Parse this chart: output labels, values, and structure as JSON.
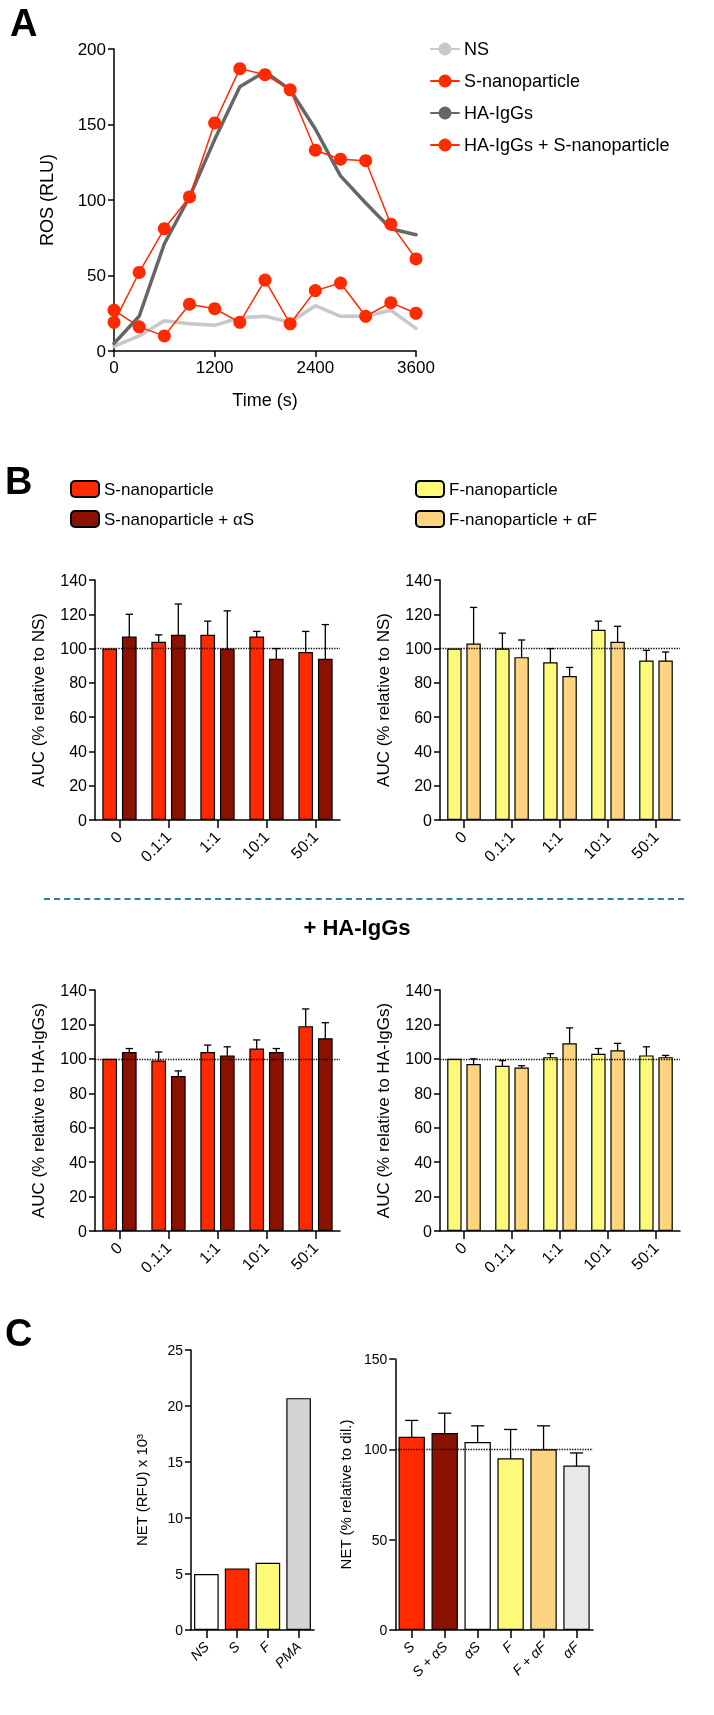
{
  "chart_data": [
    {
      "type": "line",
      "xlabel": "Time (s)",
      "ylabel": "ROS (RLU)",
      "annotations": [
        "A"
      ],
      "x": [
        0,
        300,
        600,
        900,
        1200,
        1500,
        1800,
        2100,
        2400,
        2700,
        3000,
        3300,
        3600
      ],
      "xlim": [
        0,
        3600
      ],
      "xticks": [
        0,
        1200,
        2400,
        3600
      ],
      "ylim": [
        0,
        200
      ],
      "yticks": [
        0,
        50,
        100,
        150,
        200
      ],
      "legend": "right",
      "series": [
        {
          "name": "NS",
          "color": "#c8c8c8",
          "marker": "none",
          "values": [
            3,
            10,
            20,
            18,
            17,
            22,
            23,
            19,
            30,
            23,
            23,
            27,
            15
          ]
        },
        {
          "name": "S-nanoparticle",
          "color": "#ff2a00",
          "marker": "circle",
          "values": [
            27,
            16,
            10,
            31,
            28,
            19,
            47,
            18,
            40,
            45,
            23,
            32,
            25
          ]
        },
        {
          "name": "HA-IgGs",
          "color": "#666666",
          "marker": "none",
          "values": [
            5,
            23,
            71,
            102,
            140,
            175,
            185,
            173,
            147,
            116,
            98,
            81,
            77
          ]
        },
        {
          "name": "HA-IgGs + S-nanoparticle",
          "color": "#ff2a00",
          "marker": "circle",
          "values": [
            19,
            52,
            81,
            102,
            151,
            187,
            183,
            173,
            133,
            127,
            126,
            84,
            61
          ]
        }
      ]
    },
    {
      "type": "bar",
      "ylabel": "AUC (% relative to NS)",
      "annotations": [
        "B"
      ],
      "categories": [
        "0",
        "0.1:1",
        "1:1",
        "10:1",
        "50:1"
      ],
      "ylim": [
        0,
        140
      ],
      "yticks": [
        0,
        20,
        40,
        60,
        80,
        100,
        120,
        140
      ],
      "legend": "top",
      "ref_lines": [
        {
          "axis": "y",
          "value": 100,
          "line_style": "dotted"
        }
      ],
      "series": [
        {
          "name": "S-nanoparticle",
          "color": "#ff2a00",
          "values": [
            100,
            104,
            108,
            107,
            98
          ],
          "errors": [
            0,
            4,
            8,
            3,
            12
          ]
        },
        {
          "name": "S-nanoparticle + αS",
          "color": "#8b1200",
          "values": [
            107,
            108,
            100,
            94,
            94
          ],
          "errors": [
            13,
            18,
            22,
            6,
            20
          ]
        }
      ]
    },
    {
      "type": "bar",
      "ylabel": "AUC (% relative to NS)",
      "categories": [
        "0",
        "0.1:1",
        "1:1",
        "10:1",
        "50:1"
      ],
      "ylim": [
        0,
        140
      ],
      "yticks": [
        0,
        20,
        40,
        60,
        80,
        100,
        120,
        140
      ],
      "legend": "top",
      "ref_lines": [
        {
          "axis": "y",
          "value": 100,
          "line_style": "dotted"
        }
      ],
      "series": [
        {
          "name": "F-nanoparticle",
          "color": "#fdfa7a",
          "values": [
            100,
            100,
            92,
            111,
            93
          ],
          "errors": [
            0,
            9,
            8,
            5,
            6
          ]
        },
        {
          "name": "F-nanoparticle + αF",
          "color": "#fcd47f",
          "values": [
            103,
            95,
            84,
            104,
            93
          ],
          "errors": [
            21,
            10,
            5,
            9,
            5
          ]
        }
      ]
    },
    {
      "type": "bar",
      "ylabel": "AUC (% relative to HA-IgGs)",
      "annotations": [
        "+ HA-IgGs"
      ],
      "categories": [
        "0",
        "0.1:1",
        "1:1",
        "10:1",
        "50:1"
      ],
      "ylim": [
        0,
        140
      ],
      "yticks": [
        0,
        20,
        40,
        60,
        80,
        100,
        120,
        140
      ],
      "ref_lines": [
        {
          "axis": "y",
          "value": 100,
          "line_style": "dotted"
        }
      ],
      "series": [
        {
          "color": "#ff2a00",
          "values": [
            100,
            99,
            104,
            106,
            119
          ],
          "errors": [
            0,
            5,
            4,
            5,
            10
          ]
        },
        {
          "color": "#8b1200",
          "values": [
            104,
            90,
            102,
            104,
            112
          ],
          "errors": [
            2,
            3,
            5,
            2,
            9
          ]
        }
      ]
    },
    {
      "type": "bar",
      "ylabel": "AUC (% relative to HA-IgGs)",
      "categories": [
        "0",
        "0.1:1",
        "1:1",
        "10:1",
        "50:1"
      ],
      "ylim": [
        0,
        140
      ],
      "yticks": [
        0,
        20,
        40,
        60,
        80,
        100,
        120,
        140
      ],
      "ref_lines": [
        {
          "axis": "y",
          "value": 100,
          "line_style": "dotted"
        }
      ],
      "series": [
        {
          "color": "#fdfa7a",
          "values": [
            100,
            96,
            101,
            103,
            102
          ],
          "errors": [
            0,
            3,
            2,
            3,
            5
          ]
        },
        {
          "color": "#fcd47f",
          "values": [
            97,
            95,
            109,
            105,
            101
          ],
          "errors": [
            3,
            1,
            9,
            4,
            1
          ]
        }
      ]
    },
    {
      "type": "bar",
      "ylabel": "NET (RFU) x 10³",
      "annotations": [
        "C"
      ],
      "categories": [
        "NS",
        "S",
        "F",
        "PMA"
      ],
      "ylim": [
        0,
        25
      ],
      "yticks": [
        0,
        5,
        10,
        15,
        20,
        25
      ],
      "values": [
        5,
        5.5,
        6,
        20.7
      ],
      "colors": [
        "#ffffff",
        "#ff2a00",
        "#fdfa7a",
        "#d4d4d4"
      ]
    },
    {
      "type": "bar",
      "ylabel": "NET (% relative to dil.)",
      "categories": [
        "S",
        "S + αS",
        "αS",
        "F",
        "F + αF",
        "αF"
      ],
      "ylim": [
        0,
        150
      ],
      "yticks": [
        0,
        50,
        100,
        150
      ],
      "ref_lines": [
        {
          "axis": "y",
          "value": 100,
          "line_style": "dotted"
        }
      ],
      "values": [
        107,
        109,
        104,
        95,
        100,
        91
      ],
      "errors": [
        9,
        11,
        9,
        16,
        13,
        7
      ],
      "colors": [
        "#ff2a00",
        "#8b1200",
        "#ffffff",
        "#fdfa7a",
        "#fcd47f",
        "#e8e8e8"
      ]
    }
  ]
}
